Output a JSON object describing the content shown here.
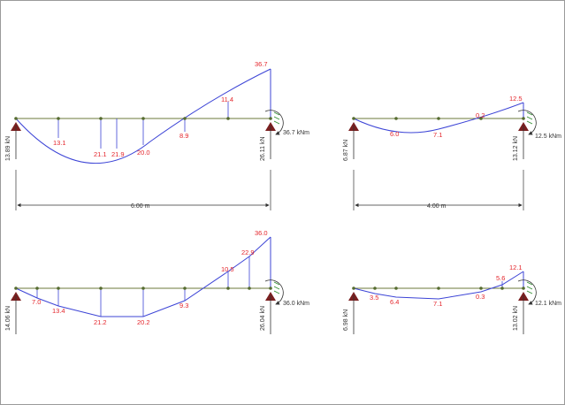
{
  "colors": {
    "beam": "#6b7a3a",
    "moment_line": "#3c44d6",
    "label": "#e4262c",
    "support": "#7a1f1f",
    "text": "#333333"
  },
  "diagrams": [
    {
      "id": "d1",
      "labels": [
        "13.1",
        "21.1",
        "21.9",
        "20.0",
        "8.9",
        "11.4",
        "36.7"
      ],
      "left_reaction": "13.89 kN",
      "right_reaction": "26.11 kN",
      "moment": "36.7 kNm",
      "span": "6.00 m"
    },
    {
      "id": "d2",
      "labels": [
        "6.0",
        "7.1",
        "0.2",
        "12.5"
      ],
      "left_reaction": "6.87 kN",
      "right_reaction": "13.12 kN",
      "moment": "12.5 kNm",
      "span": "4.00 m"
    },
    {
      "id": "d3",
      "labels": [
        "7.0",
        "13.4",
        "21.2",
        "20.2",
        "9.3",
        "10.5",
        "22.9",
        "36.0"
      ],
      "left_reaction": "14.06 kN",
      "right_reaction": "26.04 kN",
      "moment": "36.0 kNm"
    },
    {
      "id": "d4",
      "labels": [
        "3.5",
        "6.4",
        "7.1",
        "0.3",
        "5.6",
        "12.1"
      ],
      "left_reaction": "6.98 kN",
      "right_reaction": "13.02 kN",
      "moment": "12.1 kNm"
    }
  ]
}
